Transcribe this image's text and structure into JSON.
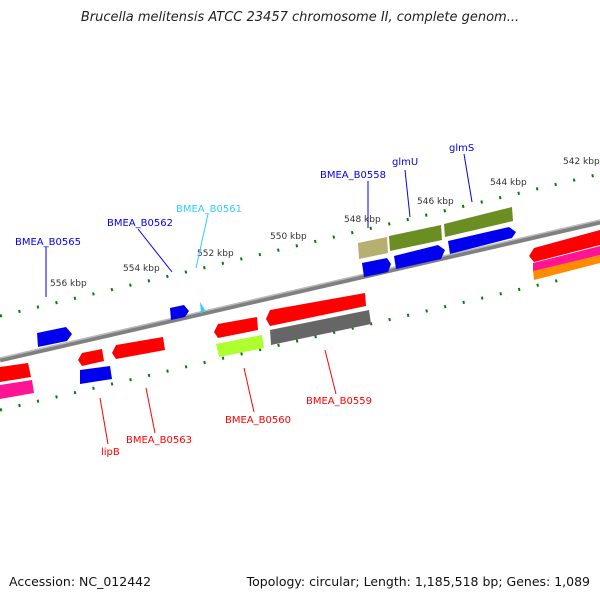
{
  "title": "Brucella melitensis ATCC 23457 chromosome II, complete genom...",
  "footer": {
    "accession": "Accession: NC_012442",
    "summary": "Topology: circular; Length: 1,185,518 bp; Genes: 1,089"
  },
  "ticks": [
    "556 kbp",
    "554 kbp",
    "552 kbp",
    "550 kbp",
    "548 kbp",
    "546 kbp",
    "544 kbp",
    "542 kbp"
  ],
  "genes_forward": [
    "BMEA_B0565",
    "BMEA_B0562",
    "BMEA_B0561",
    "BMEA_B0558",
    "glmU",
    "glmS"
  ],
  "genes_reverse": [
    "lipB",
    "BMEA_B0563",
    "BMEA_B0560",
    "BMEA_B0559"
  ],
  "colors": {
    "forward": "#0000ee",
    "forward_light": "#33ccff",
    "reverse": "#ff0000",
    "backbone": "#808080",
    "ticks": "#008000"
  }
}
